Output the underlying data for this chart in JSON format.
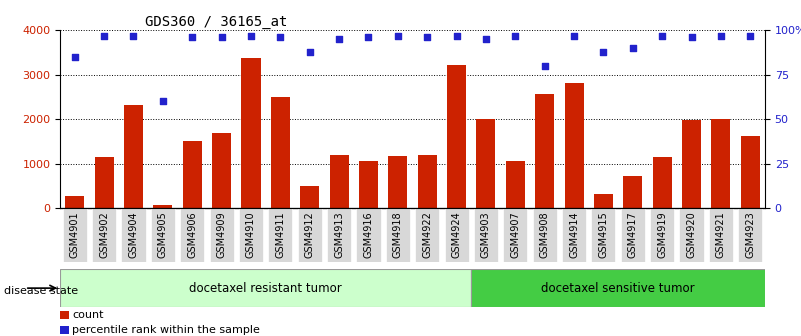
{
  "title": "GDS360 / 36165_at",
  "samples": [
    "GSM4901",
    "GSM4902",
    "GSM4904",
    "GSM4905",
    "GSM4906",
    "GSM4909",
    "GSM4910",
    "GSM4911",
    "GSM4912",
    "GSM4913",
    "GSM4916",
    "GSM4918",
    "GSM4922",
    "GSM4924",
    "GSM4903",
    "GSM4907",
    "GSM4908",
    "GSM4914",
    "GSM4915",
    "GSM4917",
    "GSM4919",
    "GSM4920",
    "GSM4921",
    "GSM4923"
  ],
  "counts": [
    280,
    1150,
    2330,
    70,
    1510,
    1700,
    3380,
    2490,
    500,
    1190,
    1060,
    1170,
    1190,
    3220,
    2000,
    1070,
    2560,
    2820,
    320,
    730,
    1150,
    1990,
    2000,
    1620
  ],
  "percentiles": [
    85,
    97,
    97,
    60,
    96,
    96,
    97,
    96,
    88,
    95,
    96,
    97,
    96,
    97,
    95,
    97,
    80,
    97,
    88,
    90,
    97,
    96,
    97,
    97
  ],
  "n_resistant": 14,
  "n_sensitive": 10,
  "bar_color": "#cc2200",
  "dot_color": "#2222cc",
  "group1_label": "docetaxel resistant tumor",
  "group2_label": "docetaxel sensitive tumor",
  "group1_color": "#ccffcc",
  "group2_color": "#44cc44",
  "disease_label": "disease state",
  "ylim_left": [
    0,
    4000
  ],
  "ylim_right": [
    0,
    100
  ],
  "yticks_left": [
    0,
    1000,
    2000,
    3000,
    4000
  ],
  "yticks_right": [
    0,
    25,
    50,
    75,
    100
  ],
  "legend_count": "count",
  "legend_pct": "percentile rank within the sample",
  "background_color": "#ffffff",
  "title_fontsize": 10,
  "tick_fontsize": 7,
  "label_fontsize": 8,
  "xtick_bg": "#d8d8d8"
}
